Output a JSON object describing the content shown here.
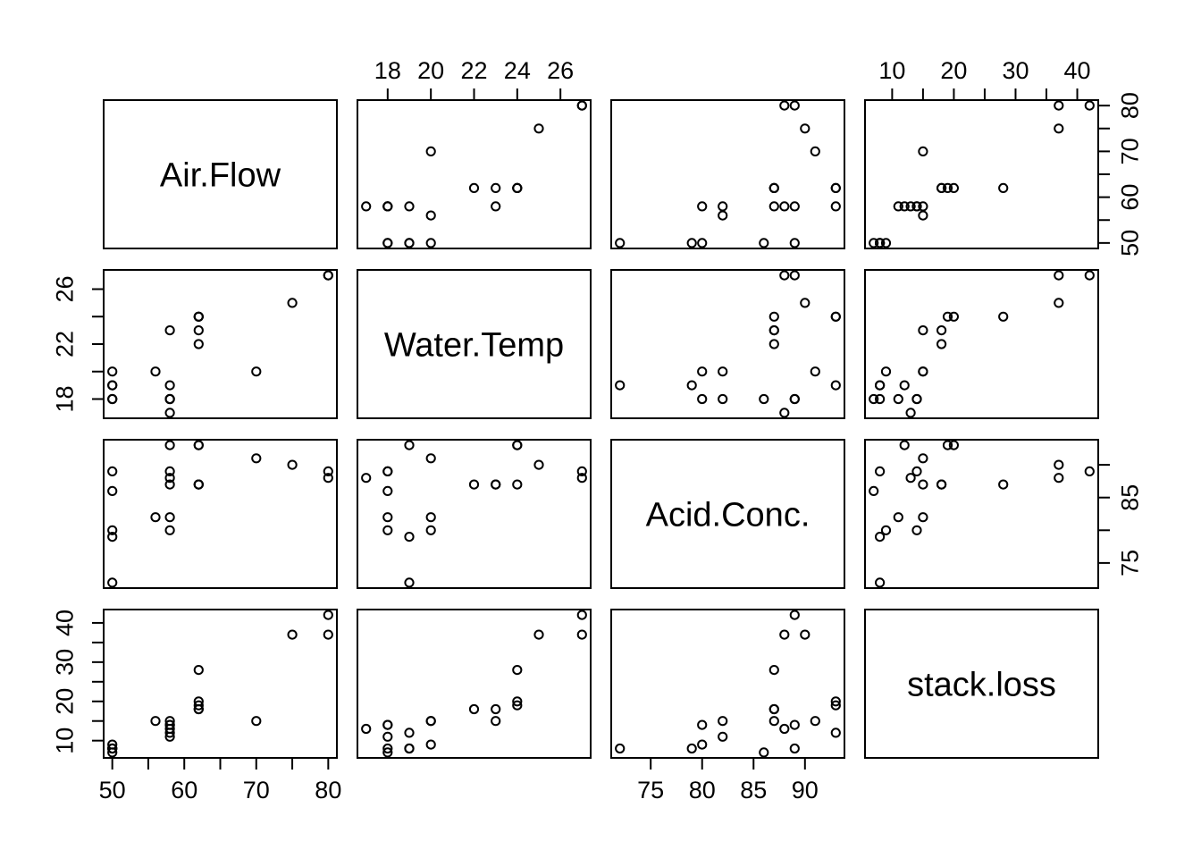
{
  "chart_data": {
    "type": "scatter_matrix",
    "title": "",
    "background": "#ffffff",
    "ink_color": "#000000",
    "grid": false,
    "point_style": {
      "marker": "open-circle",
      "radius": 4.6,
      "stroke_width": 2
    },
    "variables": [
      {
        "name": "Air.Flow",
        "range": [
          48.8,
          81.2
        ],
        "ticks": [
          50,
          55,
          60,
          65,
          70,
          75,
          80
        ],
        "tick_labels": [
          50,
          60,
          70,
          80
        ],
        "side_tick_labels": [
          50,
          60,
          70,
          80
        ]
      },
      {
        "name": "Water.Temp",
        "range": [
          16.6,
          27.4
        ],
        "ticks": [
          18,
          20,
          22,
          24,
          26
        ],
        "tick_labels": [
          18,
          20,
          22,
          24,
          26
        ],
        "side_tick_labels": [
          18,
          22,
          26
        ]
      },
      {
        "name": "Acid.Conc.",
        "range": [
          71.16,
          93.84
        ],
        "ticks": [
          75,
          80,
          85,
          90
        ],
        "tick_labels": [
          75,
          80,
          85,
          90
        ],
        "side_tick_labels": [
          75,
          85
        ]
      },
      {
        "name": "stack.loss",
        "range": [
          5.6,
          43.4
        ],
        "ticks": [
          10,
          15,
          20,
          25,
          30,
          35,
          40
        ],
        "tick_labels": [
          10,
          20,
          30,
          40
        ],
        "side_tick_labels": [
          10,
          20,
          30,
          40
        ]
      }
    ],
    "observations": [
      [
        80,
        27,
        89,
        42
      ],
      [
        80,
        27,
        88,
        37
      ],
      [
        75,
        25,
        90,
        37
      ],
      [
        62,
        24,
        87,
        28
      ],
      [
        62,
        22,
        87,
        18
      ],
      [
        62,
        23,
        87,
        18
      ],
      [
        62,
        24,
        93,
        19
      ],
      [
        62,
        24,
        93,
        20
      ],
      [
        58,
        23,
        87,
        15
      ],
      [
        58,
        18,
        80,
        14
      ],
      [
        58,
        18,
        89,
        14
      ],
      [
        58,
        17,
        88,
        13
      ],
      [
        58,
        18,
        82,
        11
      ],
      [
        58,
        19,
        93,
        12
      ],
      [
        50,
        18,
        89,
        8
      ],
      [
        50,
        18,
        86,
        7
      ],
      [
        50,
        19,
        72,
        8
      ],
      [
        50,
        19,
        79,
        8
      ],
      [
        50,
        20,
        80,
        9
      ],
      [
        56,
        20,
        82,
        15
      ],
      [
        70,
        20,
        91,
        15
      ]
    ],
    "axes": {
      "top_columns": [
        1,
        3
      ],
      "bottom_columns": [
        0,
        2
      ],
      "left_rows": [
        1,
        3
      ],
      "right_rows": [
        0,
        2
      ]
    }
  }
}
